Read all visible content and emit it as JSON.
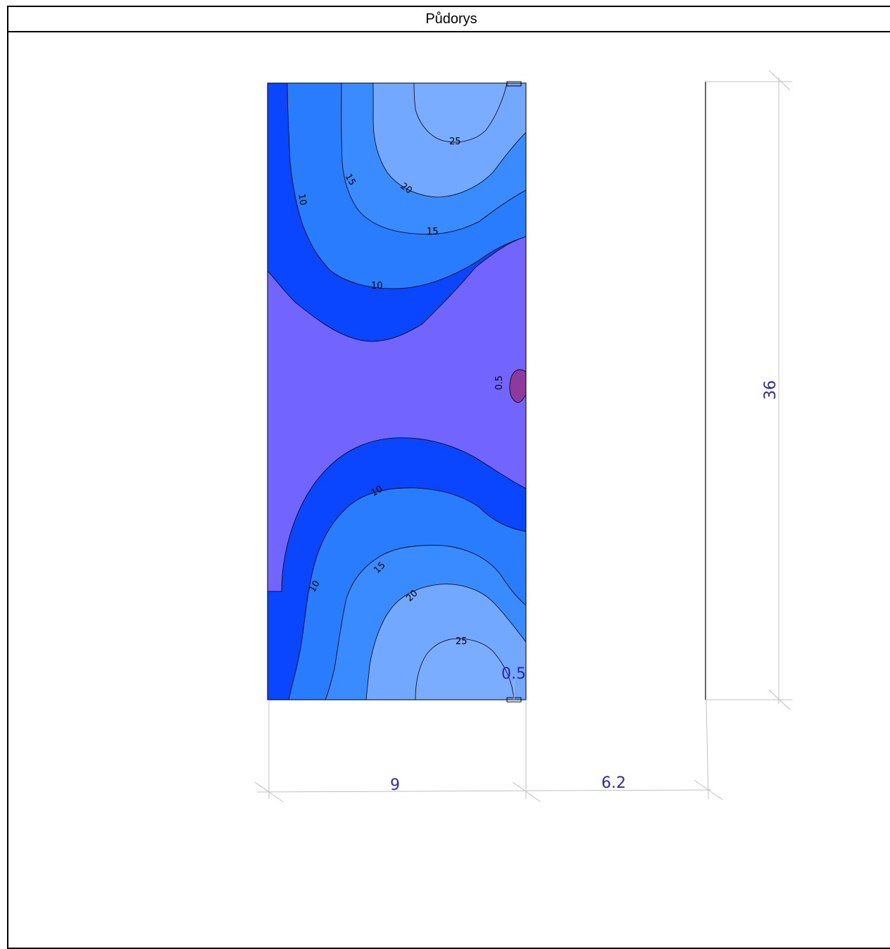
{
  "title": "Půdorys",
  "colors": {
    "band_lt5": "#7264ff",
    "band_5_10": "#0a46ff",
    "band_10_15": "#2a7cff",
    "band_15_20": "#3a8bff",
    "band_20_25": "#72a8ff",
    "band_gt25": "#7aadff",
    "hotspot": "#8c3a9e",
    "dimension_text": "#2a2aa8",
    "dimension_line": "#c0c0c0"
  },
  "contours": {
    "top": [
      "10",
      "15",
      "20",
      "25",
      "15",
      "10"
    ],
    "middle": "0.5",
    "bottom": [
      "10",
      "10",
      "15",
      "20",
      "25"
    ]
  },
  "dimensions": {
    "width": "9",
    "gap": "6.2",
    "height": "36",
    "corner": "0.5"
  }
}
